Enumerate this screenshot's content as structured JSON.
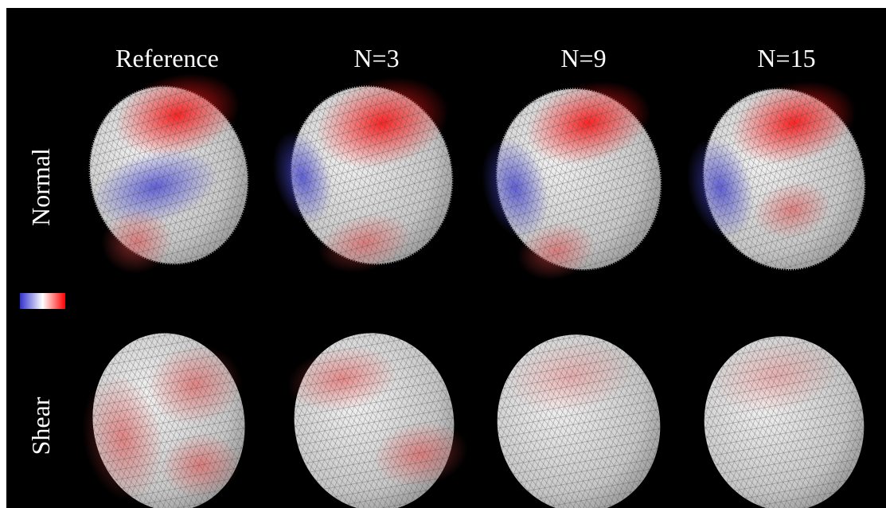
{
  "columns": [
    "Reference",
    "N=3",
    "N=9",
    "N=15"
  ],
  "rows": [
    "Normal",
    "Shear"
  ]
}
